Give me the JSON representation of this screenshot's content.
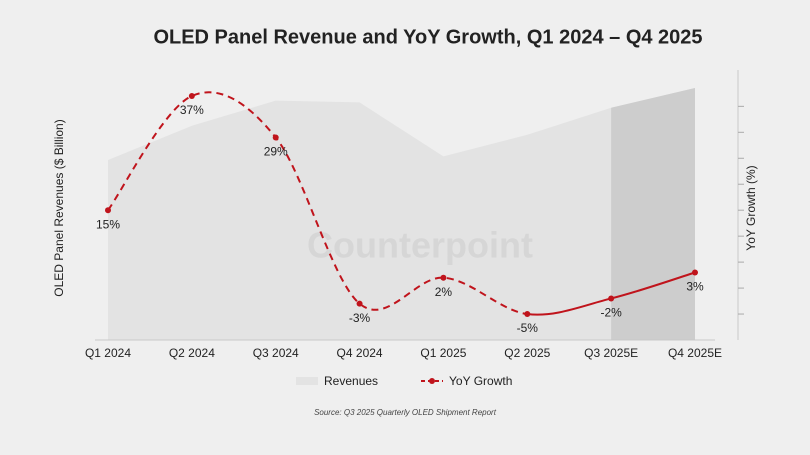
{
  "chart_data": {
    "type": "combo",
    "title": "OLED Panel Revenue and YoY Growth, Q1 2024 – Q4 2025",
    "ylabel": "OLED Panel Revenues ($ Billion)",
    "y2label": "YoY Growth (%)",
    "watermark": "Counterpoint",
    "source": "Source: Q3 2025 Quarterly OLED Shipment Report",
    "categories": [
      "Q1 2024",
      "Q2 2024",
      "Q3 2024",
      "Q4 2024",
      "Q1 2025",
      "Q2 2025",
      "Q3 2025E",
      "Q4 2025E"
    ],
    "ylim": [
      0,
      15
    ],
    "y2lim": [
      -10,
      42
    ],
    "y2ticks": [
      -5,
      0,
      5,
      10,
      15,
      20,
      25,
      30,
      35
    ],
    "forecast_start": 6,
    "dash_until": 5,
    "series": [
      {
        "name": "Revenues",
        "type": "area",
        "color": "#e3e3e3",
        "forecast_color": "#cdcdcd",
        "values": [
          10.0,
          11.9,
          13.3,
          13.2,
          10.2,
          11.4,
          12.9,
          14.0
        ]
      },
      {
        "name": "YoY Growth",
        "type": "line",
        "axis": "y2",
        "color": "#c0141c",
        "values": [
          15,
          37,
          29,
          -3,
          2,
          -5,
          -2,
          3
        ],
        "value_labels": [
          "15%",
          "37%",
          "29%",
          "-3%",
          "2%",
          "-5%",
          "-2%",
          "3%"
        ]
      }
    ]
  }
}
